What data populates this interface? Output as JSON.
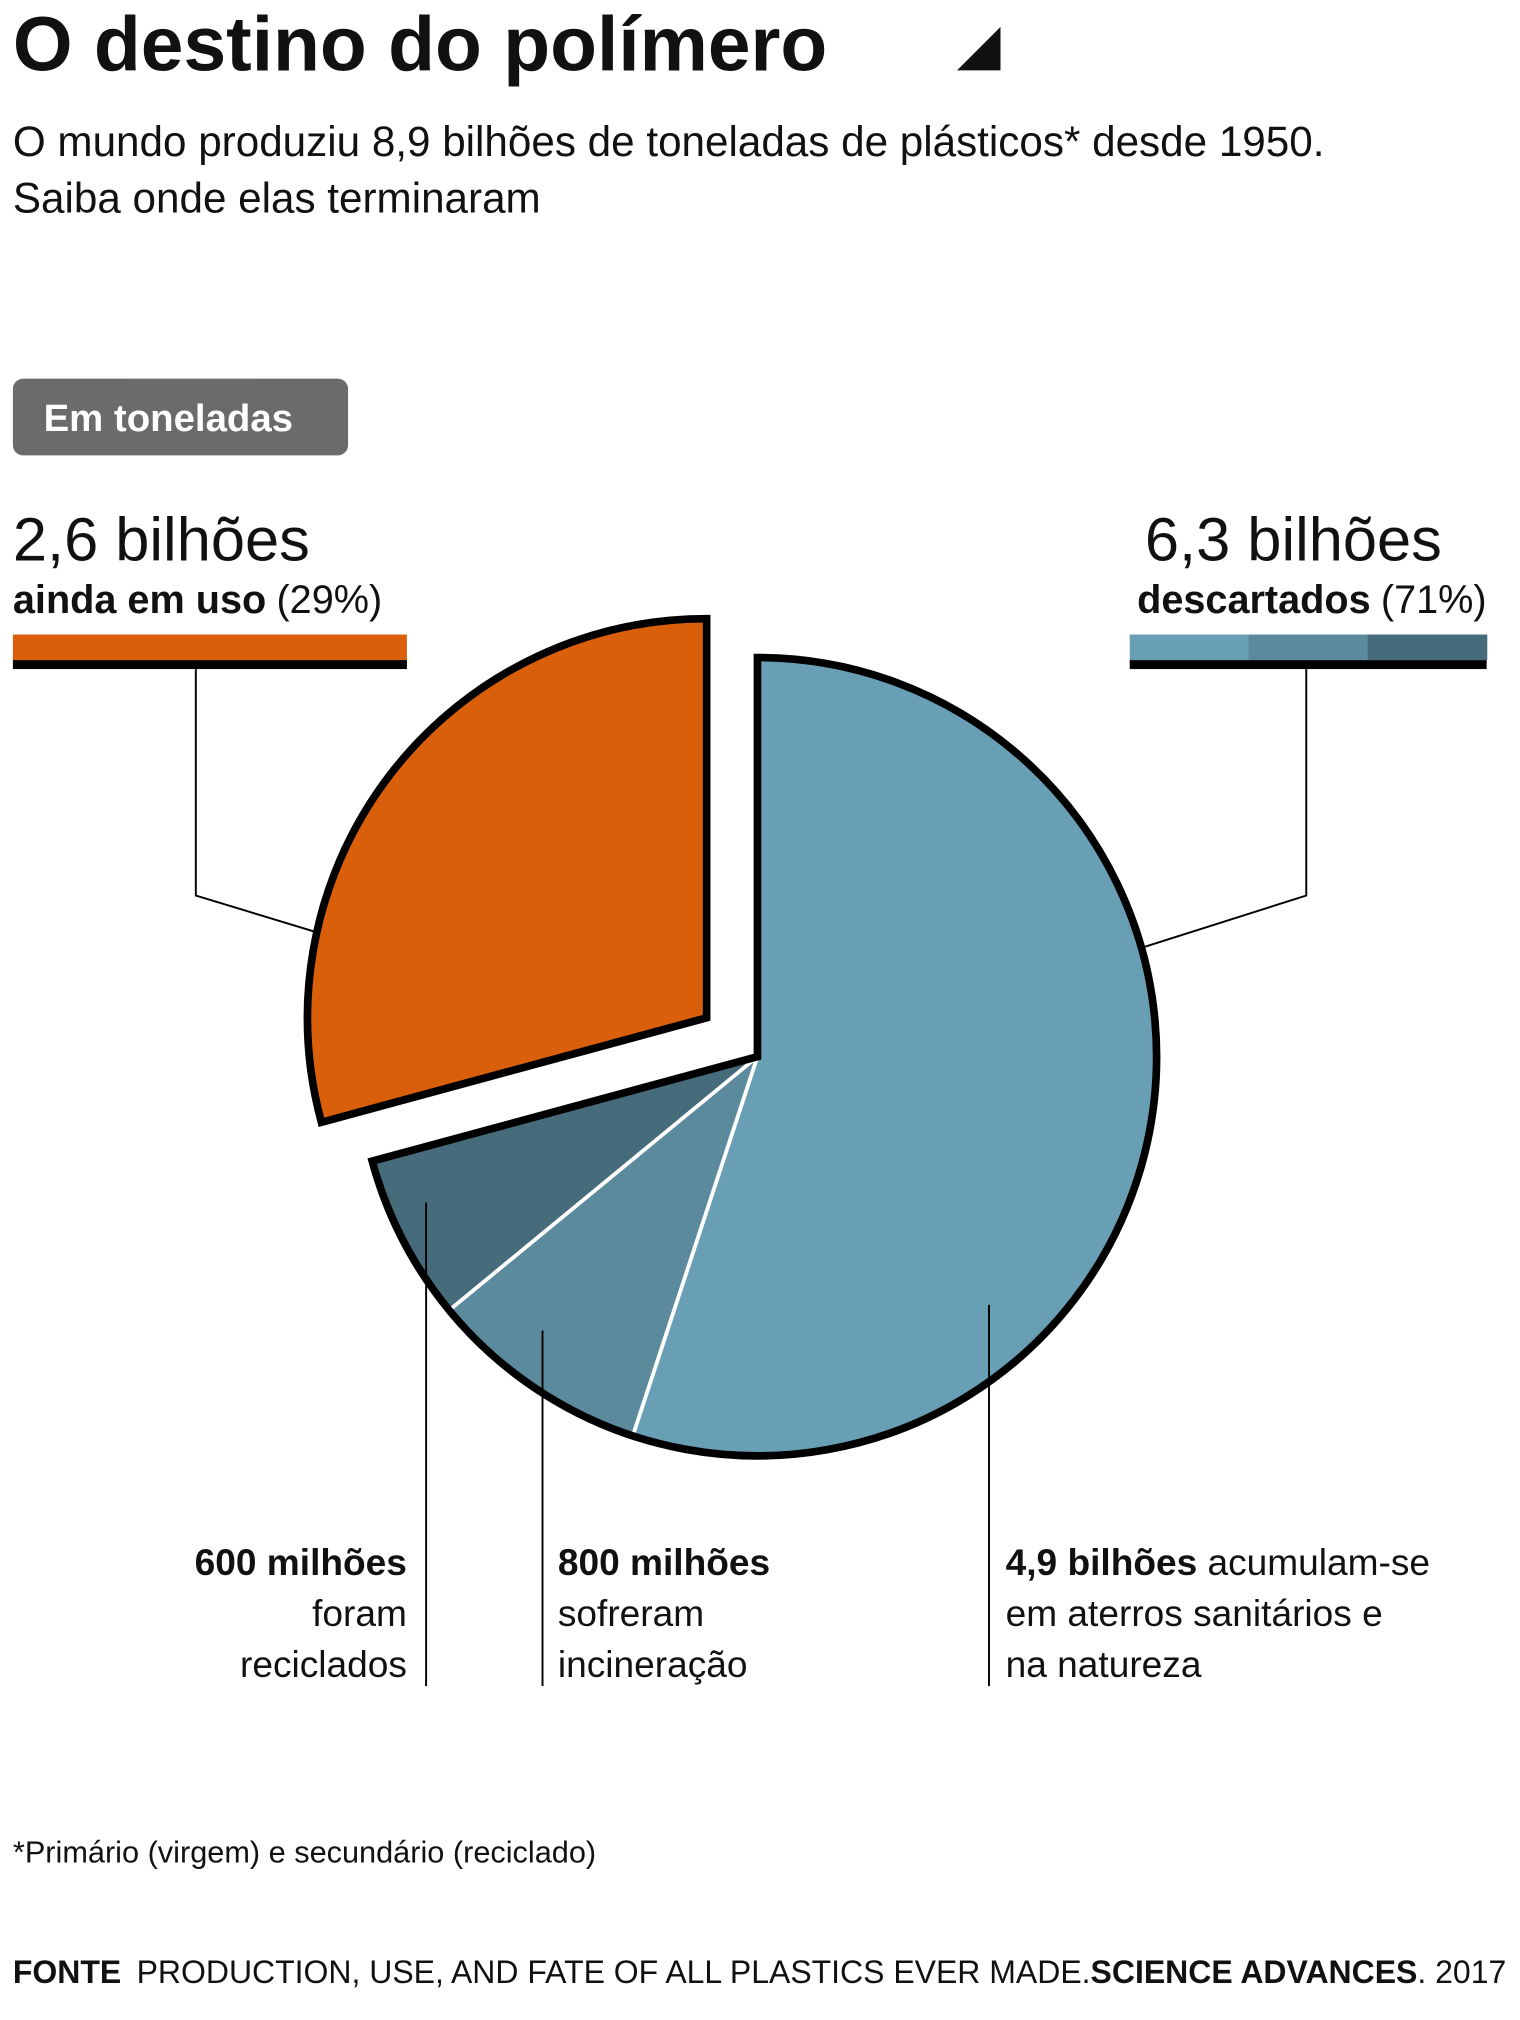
{
  "chart_data": {
    "type": "pie",
    "title": "O destino do polímero",
    "subtitle_lines": [
      "O mundo produziu 8,9 bilhões de toneladas de plásticos* desde 1950.",
      "Saiba onde elas terminaram"
    ],
    "unit_note": "Em toneladas",
    "values": [
      4.9,
      0.8,
      0.6,
      2.6
    ],
    "value_labels": [
      "4,9 bilhões",
      "800 milhões",
      "600 milhões",
      null
    ],
    "category_lines": [
      [
        "acumulam-se",
        "em aterros sanitários e",
        "na natureza"
      ],
      [
        "sofreram",
        "incineração"
      ],
      [
        "foram",
        "reciclados"
      ],
      null
    ],
    "colors": [
      "#699fb5",
      "#5a8a9c",
      "#466b7a",
      "#d95f0a"
    ],
    "groups": [
      {
        "name": "ainda em uso",
        "value": 2.6,
        "value_label": "2,6 bilhões",
        "percent": 29,
        "percent_label": "(29%)"
      },
      {
        "name": "descartados",
        "value": 6.3,
        "value_label": "6,3 bilhões",
        "percent": 71,
        "percent_label": "(71%)"
      }
    ],
    "footnote": "*Primário (virgem) e secundário (reciclado)",
    "source": [
      "FONTE",
      "PRODUCTION, USE, AND FATE OF ALL PLASTICS EVER MADE.",
      "SCIENCE ADVANCES",
      ". 2017"
    ]
  }
}
